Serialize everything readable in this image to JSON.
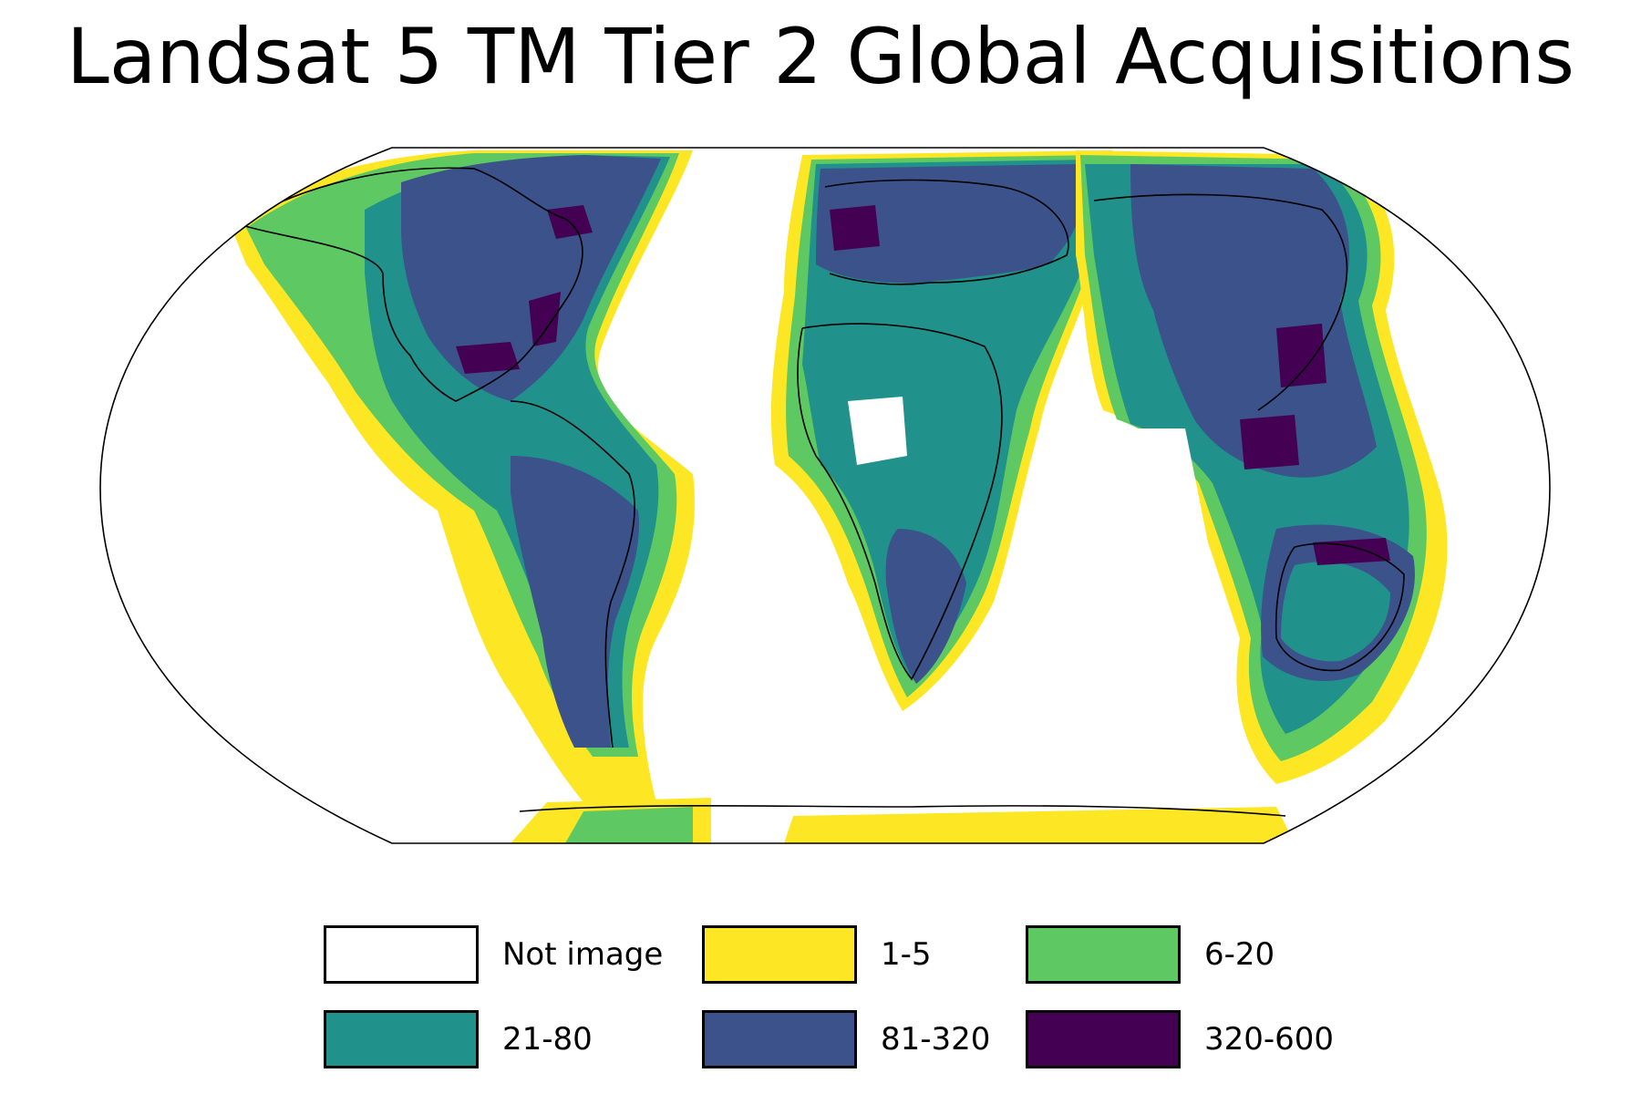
{
  "title": "Landsat 5 TM Tier 2 Global Acquisitions",
  "legend": [
    {
      "label": "Not image",
      "color": "#ffffff"
    },
    {
      "label": "1-5",
      "color": "#fde725"
    },
    {
      "label": "6-20",
      "color": "#5ec962"
    },
    {
      "label": "21-80",
      "color": "#21918c"
    },
    {
      "label": "81-320",
      "color": "#3b528b"
    },
    {
      "label": "320-600",
      "color": "#440154"
    }
  ],
  "colors": {
    "not_image": "#ffffff",
    "c1_5": "#fde725",
    "c6_20": "#5ec962",
    "c21_80": "#21918c",
    "c81_320": "#3b528b",
    "c320_600": "#440154",
    "outline": "#000000"
  },
  "map": {
    "projection": "robinson",
    "coastlines": true,
    "country_borders": true
  }
}
